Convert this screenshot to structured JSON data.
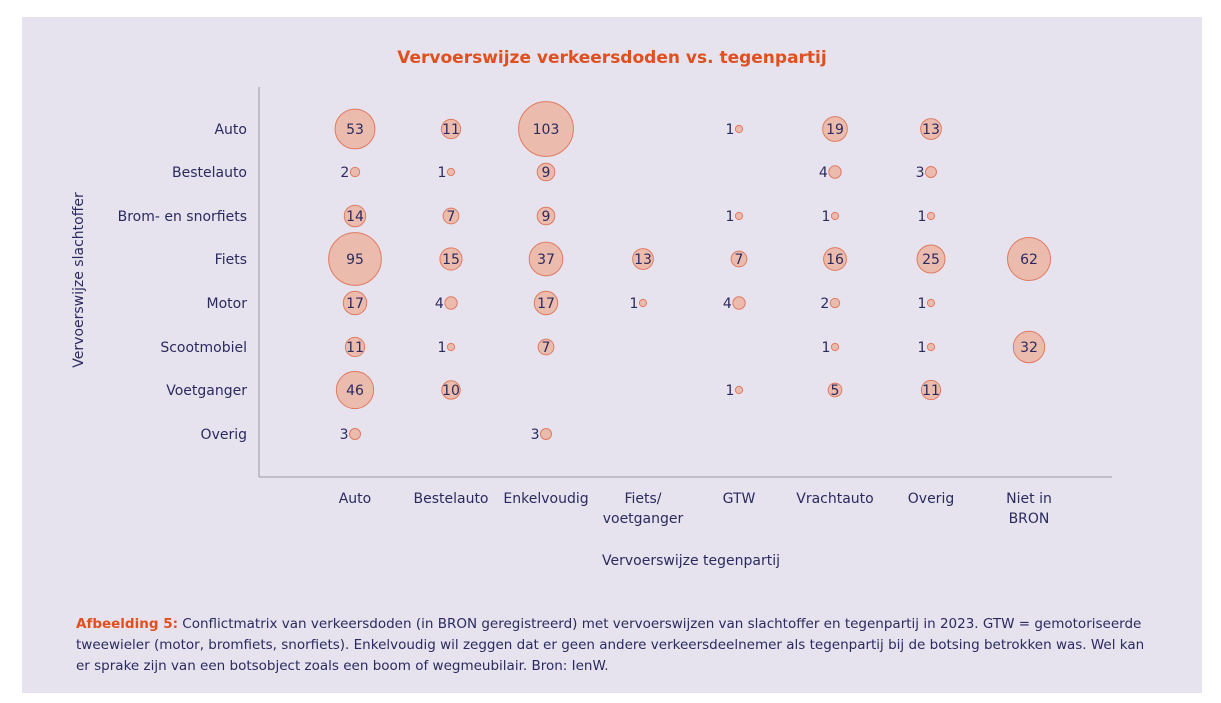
{
  "chart_data": {
    "type": "bubble-matrix",
    "title": "Vervoerswijze verkeersdoden vs. tegenpartij",
    "xlabel": "Vervoerswijze tegenpartij",
    "ylabel": "Vervoerswijze slachtoffer",
    "columns": [
      "Auto",
      "Bestelauto",
      "Enkelvoudig",
      "Fiets/ voetganger",
      "GTW",
      "Vrachtauto",
      "Overig",
      "Niet in BRON"
    ],
    "rows": [
      "Auto",
      "Bestelauto",
      "Brom- en snorfiets",
      "Fiets",
      "Motor",
      "Scootmobiel",
      "Voetganger",
      "Overig"
    ],
    "values": [
      [
        53,
        11,
        103,
        null,
        1,
        19,
        13,
        null
      ],
      [
        2,
        1,
        9,
        null,
        null,
        4,
        3,
        null
      ],
      [
        14,
        7,
        9,
        null,
        1,
        1,
        1,
        null
      ],
      [
        95,
        15,
        37,
        13,
        7,
        16,
        25,
        62
      ],
      [
        17,
        4,
        17,
        1,
        4,
        2,
        1,
        null
      ],
      [
        11,
        1,
        7,
        null,
        null,
        1,
        1,
        32
      ],
      [
        46,
        10,
        null,
        null,
        1,
        5,
        11,
        null
      ],
      [
        3,
        null,
        3,
        null,
        null,
        null,
        null,
        null
      ]
    ],
    "colors": {
      "bubble_fill": "#ebbcae",
      "bubble_stroke": "#e07a5f",
      "title": "#e0501f",
      "text": "#2b2a5e",
      "background": "#e6e3ee"
    }
  },
  "caption": {
    "label": "Afbeelding 5:",
    "text": " Conflictmatrix van verkeersdoden (in BRON geregistreerd) met vervoerswijzen van slachtoffer en tegenpartij in 2023. GTW = gemotoriseerde tweewieler (motor, bromfiets, snorfiets). Enkelvoudig wil zeggen dat er geen andere verkeersdeelnemer als tegenpartij bij de botsing betrokken was. Wel kan er sprake zijn van een botsobject zoals een boom of wegmeubilair. Bron: IenW."
  }
}
